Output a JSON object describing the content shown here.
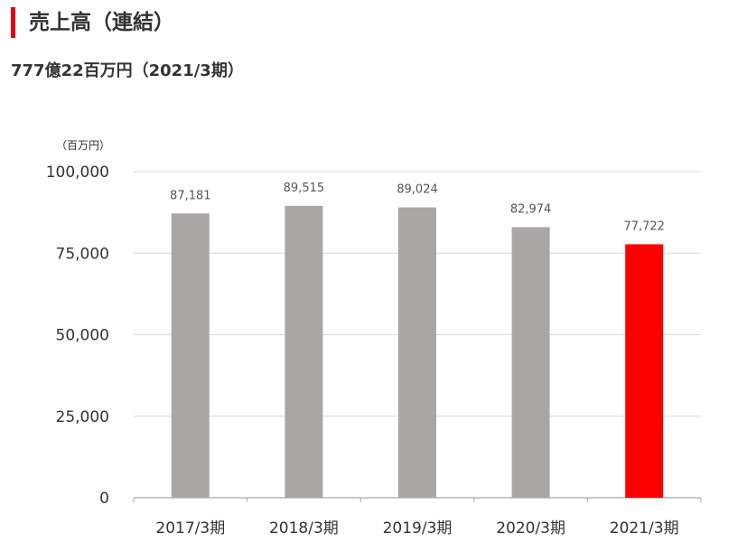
{
  "header": {
    "title": "売上高（連結）",
    "summary": "777億22百万円（2021/3期）",
    "accent_color": "#e60012"
  },
  "chart_data": {
    "type": "bar",
    "unit_label": "（百万円）",
    "categories": [
      "2017/3期",
      "2018/3期",
      "2019/3期",
      "2020/3期",
      "2021/3期"
    ],
    "values": [
      87181,
      89515,
      89024,
      82974,
      77722
    ],
    "value_labels": [
      "87,181",
      "89,515",
      "89,024",
      "82,974",
      "77,722"
    ],
    "ylim": [
      0,
      100000
    ],
    "yticks": [
      0,
      25000,
      50000,
      75000,
      100000
    ],
    "ytick_labels": [
      "0",
      "25,000",
      "50,000",
      "75,000",
      "100,000"
    ],
    "grid": true,
    "bar_color": "#aaa6a5",
    "highlight_color": "#ff0000",
    "highlight_index": 4,
    "grid_color": "#d9d9d9",
    "axis_color": "#a6a6a6"
  }
}
